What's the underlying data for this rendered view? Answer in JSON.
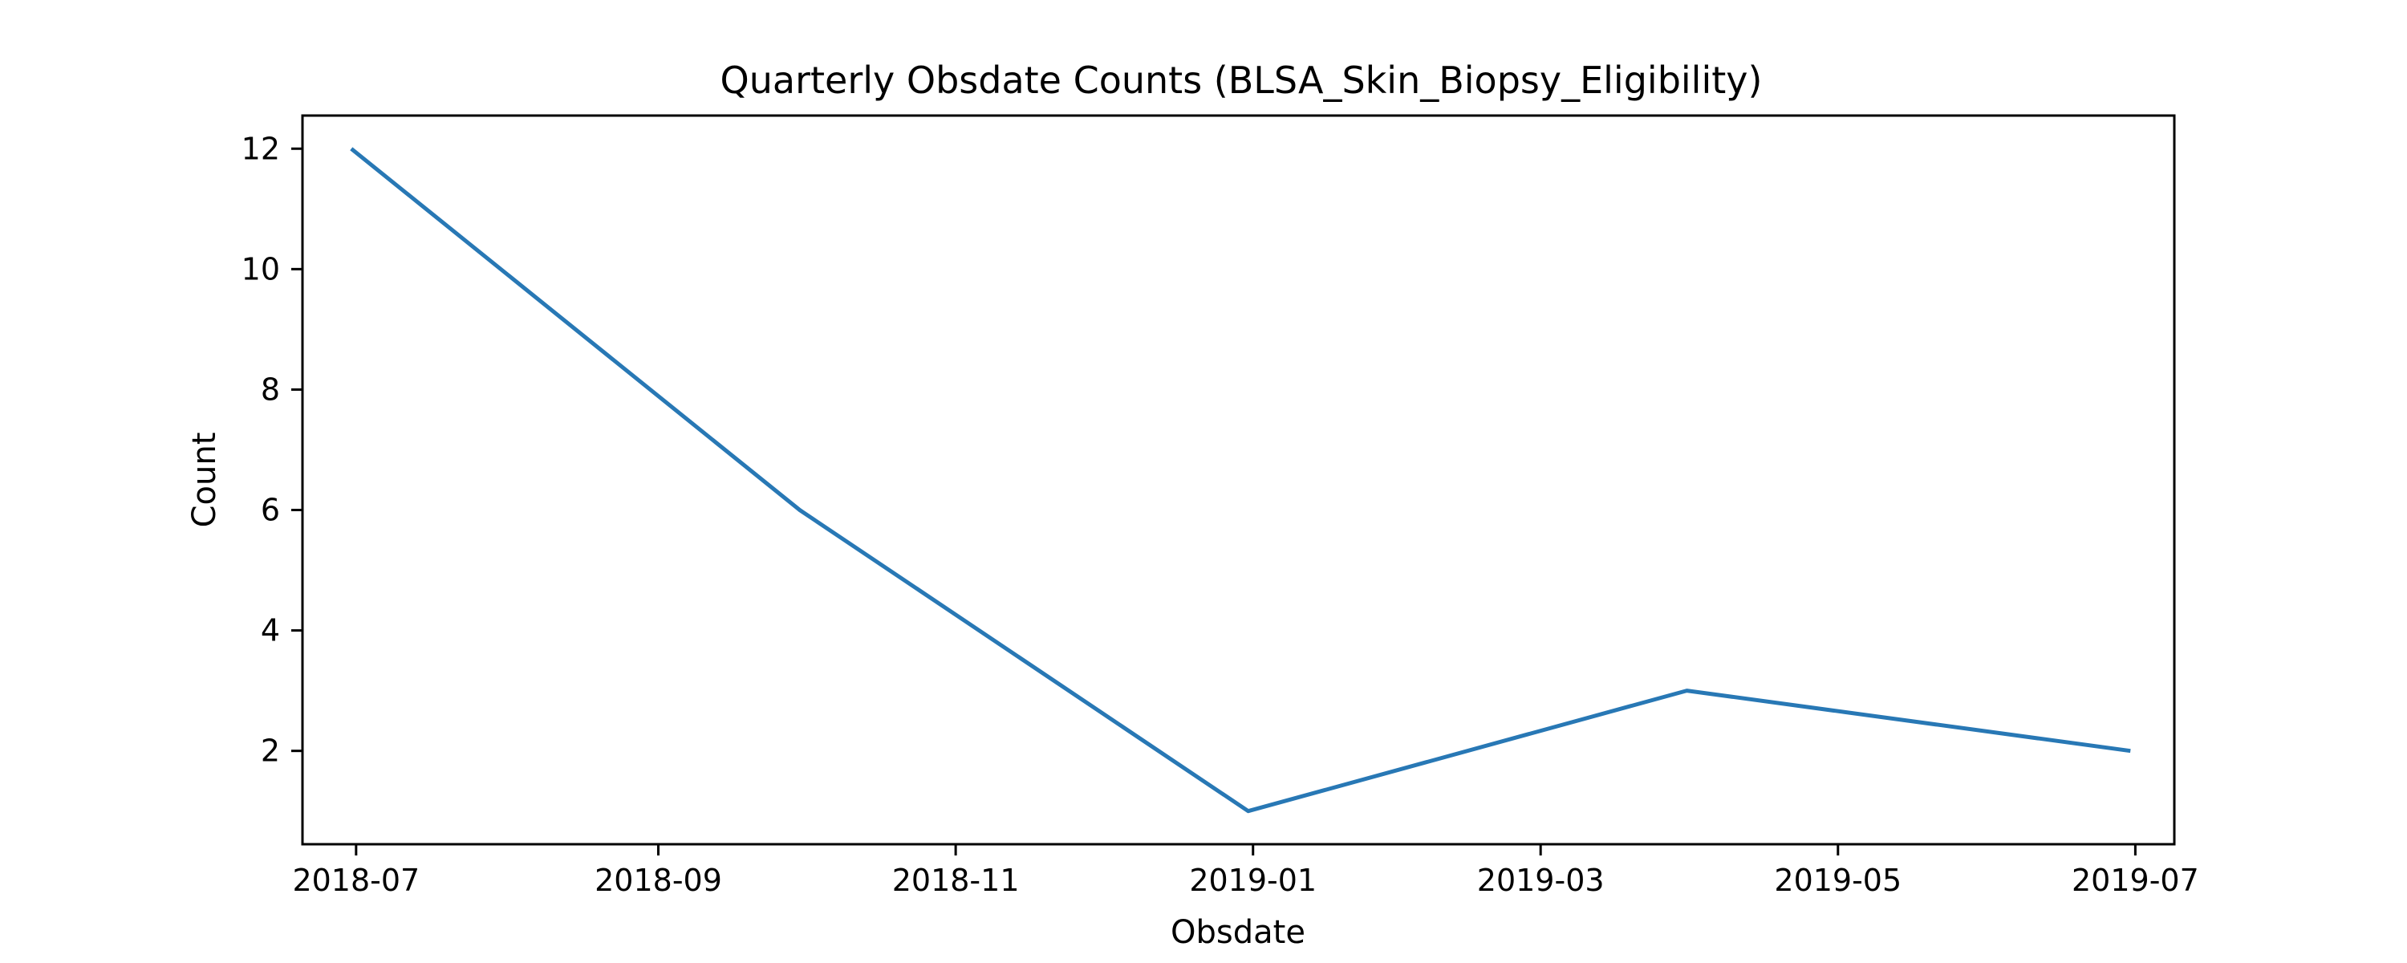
{
  "chart_data": {
    "type": "line",
    "title": "Quarterly Obsdate Counts (BLSA_Skin_Biopsy_Eligibility)",
    "xlabel": "Obsdate",
    "ylabel": "Count",
    "x": [
      "2018-06-30",
      "2018-09-30",
      "2018-12-31",
      "2019-03-31",
      "2019-06-30"
    ],
    "series": [
      {
        "values": [
          12,
          6,
          1,
          3,
          2
        ],
        "color": "#2878b5"
      }
    ],
    "xlim": [
      "2018-06-20",
      "2019-07-09"
    ],
    "ylim": [
      0.45,
      12.55
    ],
    "x_ticks": [
      {
        "date": "2018-07-01",
        "label": "2018-07"
      },
      {
        "date": "2018-09-01",
        "label": "2018-09"
      },
      {
        "date": "2018-11-01",
        "label": "2018-11"
      },
      {
        "date": "2019-01-01",
        "label": "2019-01"
      },
      {
        "date": "2019-03-01",
        "label": "2019-03"
      },
      {
        "date": "2019-05-01",
        "label": "2019-05"
      },
      {
        "date": "2019-07-01",
        "label": "2019-07"
      }
    ],
    "y_ticks": [
      2,
      4,
      6,
      8,
      10,
      12
    ],
    "grid": false,
    "legend": "none"
  }
}
